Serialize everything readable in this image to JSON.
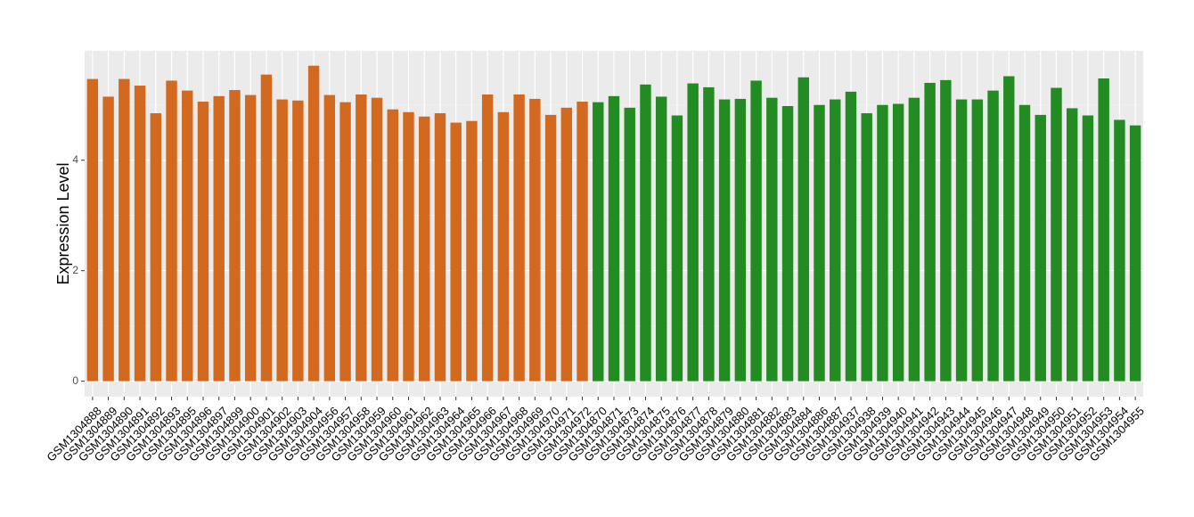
{
  "chart_data": {
    "type": "bar",
    "y_label": "Expression Level",
    "categories": [
      "GSM1304888",
      "GSM1304889",
      "GSM1304890",
      "GSM1304891",
      "GSM1304892",
      "GSM1304893",
      "GSM1304895",
      "GSM1304896",
      "GSM1304897",
      "GSM1304899",
      "GSM1304900",
      "GSM1304901",
      "GSM1304902",
      "GSM1304903",
      "GSM1304904",
      "GSM1304956",
      "GSM1304957",
      "GSM1304958",
      "GSM1304959",
      "GSM1304960",
      "GSM1304961",
      "GSM1304962",
      "GSM1304963",
      "GSM1304964",
      "GSM1304965",
      "GSM1304966",
      "GSM1304967",
      "GSM1304968",
      "GSM1304969",
      "GSM1304970",
      "GSM1304971",
      "GSM1304972",
      "GSM1304870",
      "GSM1304871",
      "GSM1304873",
      "GSM1304874",
      "GSM1304875",
      "GSM1304876",
      "GSM1304877",
      "GSM1304878",
      "GSM1304879",
      "GSM1304880",
      "GSM1304881",
      "GSM1304882",
      "GSM1304883",
      "GSM1304884",
      "GSM1304886",
      "GSM1304887",
      "GSM1304937",
      "GSM1304938",
      "GSM1304939",
      "GSM1304940",
      "GSM1304941",
      "GSM1304942",
      "GSM1304943",
      "GSM1304944",
      "GSM1304945",
      "GSM1304946",
      "GSM1304947",
      "GSM1304948",
      "GSM1304949",
      "GSM1304950",
      "GSM1304951",
      "GSM1304952",
      "GSM1304953",
      "GSM1304954",
      "GSM1304955"
    ],
    "values": [
      5.47,
      5.15,
      5.47,
      5.35,
      4.85,
      5.44,
      5.26,
      5.06,
      5.16,
      5.27,
      5.18,
      5.55,
      5.1,
      5.08,
      5.71,
      5.18,
      5.05,
      5.19,
      5.13,
      4.92,
      4.87,
      4.79,
      4.85,
      4.68,
      4.71,
      5.19,
      4.87,
      5.19,
      5.11,
      4.82,
      4.95,
      5.06,
      5.05,
      5.16,
      4.95,
      5.37,
      5.15,
      4.81,
      5.39,
      5.32,
      5.1,
      5.11,
      5.44,
      5.13,
      4.98,
      5.5,
      5.0,
      5.1,
      5.24,
      4.85,
      5.0,
      5.02,
      5.13,
      5.4,
      5.45,
      5.1,
      5.1,
      5.26,
      5.52,
      5.0,
      4.82,
      5.31,
      4.94,
      4.81,
      5.48,
      4.73,
      4.63
    ],
    "colors": [
      "#d2691e",
      "#d2691e",
      "#d2691e",
      "#d2691e",
      "#d2691e",
      "#d2691e",
      "#d2691e",
      "#d2691e",
      "#d2691e",
      "#d2691e",
      "#d2691e",
      "#d2691e",
      "#d2691e",
      "#d2691e",
      "#d2691e",
      "#d2691e",
      "#d2691e",
      "#d2691e",
      "#d2691e",
      "#d2691e",
      "#d2691e",
      "#d2691e",
      "#d2691e",
      "#d2691e",
      "#d2691e",
      "#d2691e",
      "#d2691e",
      "#d2691e",
      "#d2691e",
      "#d2691e",
      "#d2691e",
      "#d2691e",
      "#228b22",
      "#228b22",
      "#228b22",
      "#228b22",
      "#228b22",
      "#228b22",
      "#228b22",
      "#228b22",
      "#228b22",
      "#228b22",
      "#228b22",
      "#228b22",
      "#228b22",
      "#228b22",
      "#228b22",
      "#228b22",
      "#228b22",
      "#228b22",
      "#228b22",
      "#228b22",
      "#228b22",
      "#228b22",
      "#228b22",
      "#228b22",
      "#228b22",
      "#228b22",
      "#228b22",
      "#228b22",
      "#228b22",
      "#228b22",
      "#228b22",
      "#228b22",
      "#228b22",
      "#228b22",
      "#228b22"
    ],
    "ylim": [
      -0.28,
      5.98
    ],
    "yticks": [
      0,
      2,
      4
    ],
    "minor_yticks": [
      1,
      3,
      5
    ],
    "grid": true
  }
}
